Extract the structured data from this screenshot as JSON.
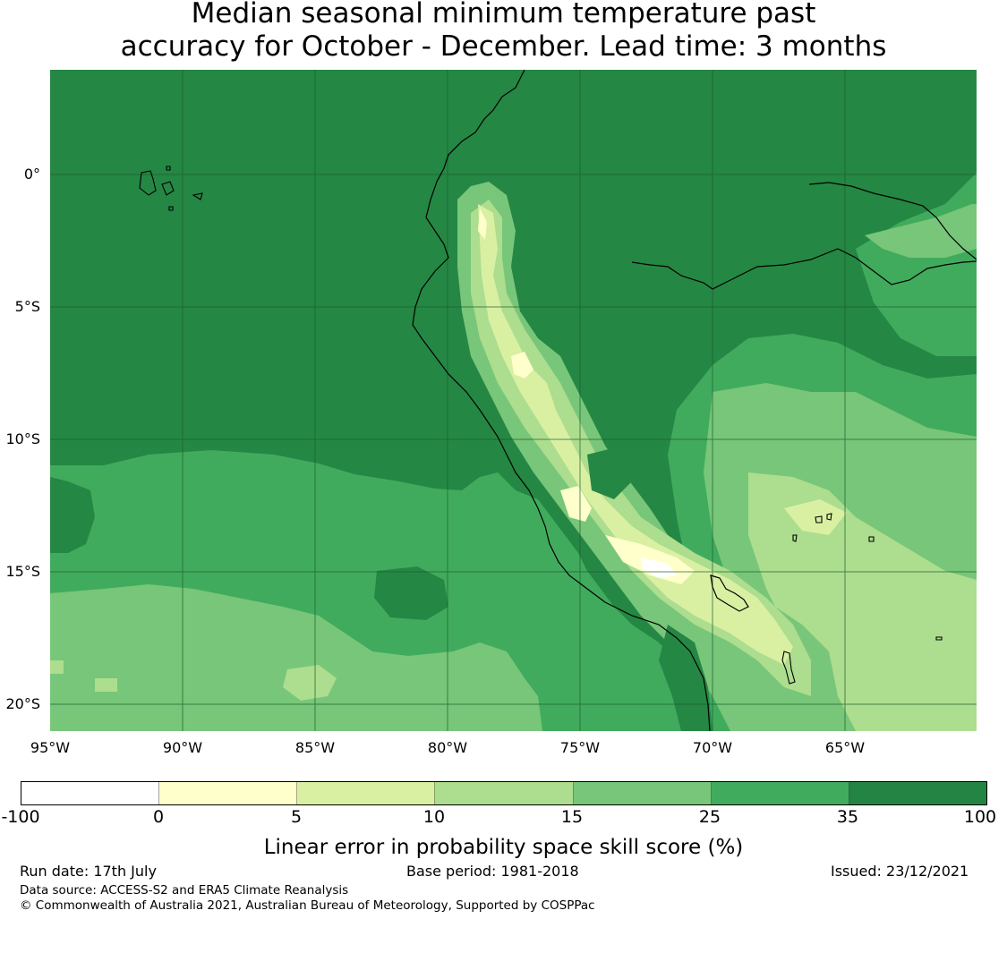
{
  "title": {
    "line1": "Median seasonal minimum temperature past",
    "line2": "accuracy for October - December. Lead time: 3 months"
  },
  "map": {
    "lat_labels": [
      "0°",
      "5°S",
      "10°S",
      "15°S",
      "20°S"
    ],
    "lon_labels": [
      "95°W",
      "90°W",
      "85°W",
      "80°W",
      "75°W",
      "70°W",
      "65°W"
    ],
    "extent": {
      "lon": [
        -95,
        -60
      ],
      "lat": [
        -21,
        4
      ]
    }
  },
  "colorbar": {
    "label": "Linear error in probability space skill score (%)",
    "ticks": [
      "-100",
      "0",
      "5",
      "10",
      "15",
      "25",
      "35",
      "100"
    ],
    "colors": [
      "#ffffff",
      "#ffffcc",
      "#d9f0a3",
      "#addd8e",
      "#78c679",
      "#41ab5d",
      "#238443"
    ]
  },
  "footer": {
    "run_date": "Run date: 17th July",
    "base_period": "Base period: 1981-2018",
    "issued": "Issued: 23/12/2021",
    "data_source": "Data source: ACCESS-S2 and ERA5 Climate Reanalysis",
    "copyright": "© Commonwealth of Australia 2021, Australian Bureau of Meteorology, Supported by COSPPac"
  }
}
